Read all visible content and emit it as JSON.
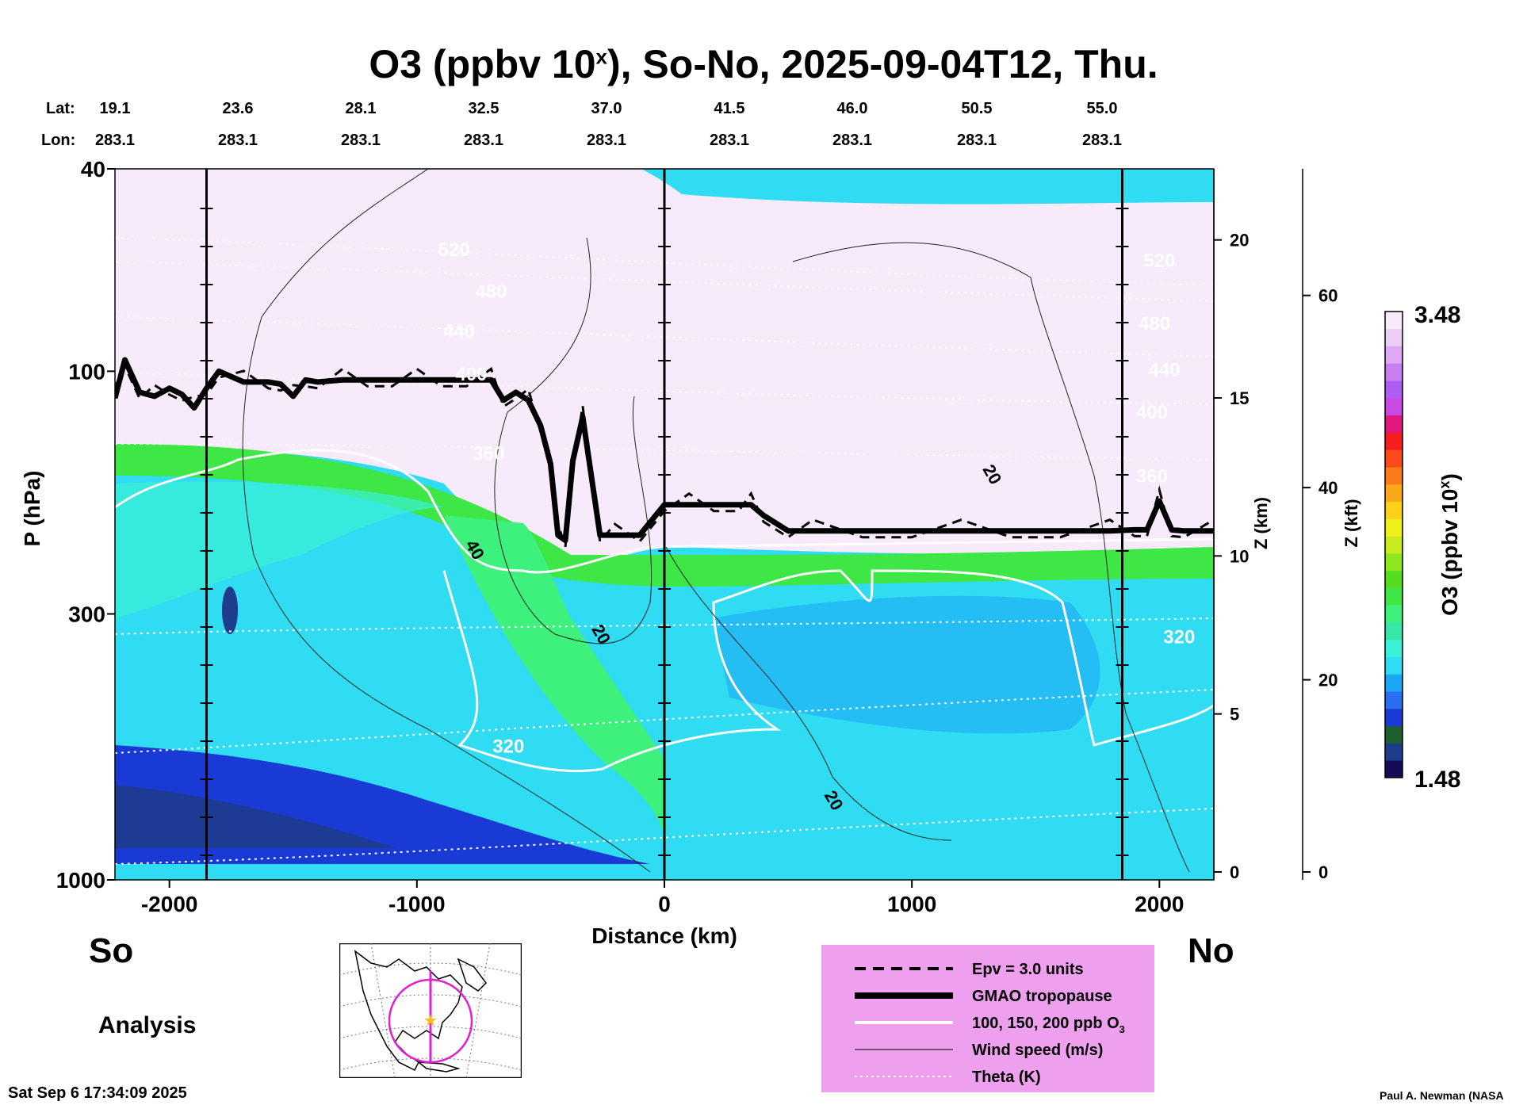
{
  "chart_data": {
    "type": "heatmap",
    "title_main": "O3 (ppbv 10",
    "title_sup": "x",
    "title_rest": "), So-No, 2025-09-04T12, Thu.",
    "header": {
      "lat_label": "Lat:",
      "lon_label": "Lon:",
      "lat_values": [
        "19.1",
        "23.6",
        "28.1",
        "32.5",
        "37.0",
        "41.5",
        "46.0",
        "50.5",
        "55.0"
      ],
      "lon_values": [
        "283.1",
        "283.1",
        "283.1",
        "283.1",
        "283.1",
        "283.1",
        "283.1",
        "283.1",
        "283.1"
      ]
    },
    "xlabel": "Distance (km)",
    "ylabel": "P (hPa)",
    "xlim": [
      -2220,
      2220
    ],
    "ylim": [
      1000,
      40
    ],
    "yscale": "log",
    "x_ticks": [
      {
        "value": -2000,
        "label": "-2000"
      },
      {
        "value": -1000,
        "label": "-1000"
      },
      {
        "value": 0,
        "label": "0"
      },
      {
        "value": 1000,
        "label": "1000"
      },
      {
        "value": 2000,
        "label": "2000"
      }
    ],
    "y_ticks": [
      {
        "value": 40,
        "label": "40"
      },
      {
        "value": 100,
        "label": "100"
      },
      {
        "value": 300,
        "label": "300"
      },
      {
        "value": 1000,
        "label": "1000"
      }
    ],
    "z_km_axis": {
      "label": "Z (km)",
      "ticks": [
        {
          "value": 0,
          "label": "0"
        },
        {
          "value": 5,
          "label": "5"
        },
        {
          "value": 10,
          "label": "10"
        },
        {
          "value": 15,
          "label": "15"
        },
        {
          "value": 20,
          "label": "20"
        }
      ]
    },
    "z_kft_axis": {
      "label": "Z (kft)",
      "ticks": [
        {
          "value": 0,
          "label": "0"
        },
        {
          "value": 20,
          "label": "20"
        },
        {
          "value": 40,
          "label": "40"
        },
        {
          "value": 60,
          "label": "60"
        }
      ]
    },
    "vertical_lines_x": [
      -1850,
      0,
      1850
    ],
    "tropopause": {
      "x": [
        -2220,
        -2180,
        -2120,
        -2060,
        -2000,
        -1950,
        -1900,
        -1850,
        -1800,
        -1700,
        -1600,
        -1550,
        -1500,
        -1450,
        -1400,
        -1300,
        -1200,
        -1100,
        -1000,
        -900,
        -800,
        -700,
        -650,
        -600,
        -550,
        -500,
        -460,
        -430,
        -400,
        -370,
        -330,
        -300,
        -260,
        -200,
        -100,
        0,
        100,
        200,
        300,
        350,
        400,
        500,
        600,
        800,
        1000,
        1200,
        1400,
        1600,
        1800,
        1900,
        1950,
        2000,
        2050,
        2100,
        2220
      ],
      "p": [
        113,
        95,
        110,
        112,
        108,
        111,
        118,
        108,
        100,
        105,
        105,
        106,
        112,
        104,
        105,
        104,
        104,
        104,
        104,
        104,
        104,
        104,
        114,
        110,
        114,
        128,
        152,
        210,
        215,
        150,
        123,
        155,
        210,
        210,
        210,
        183,
        183,
        183,
        183,
        183,
        192,
        206,
        206,
        206,
        206,
        206,
        206,
        206,
        206,
        205,
        205,
        180,
        205,
        206,
        206
      ]
    },
    "contour_labels_theta": [
      {
        "x": -850,
        "p": 58,
        "label": "520"
      },
      {
        "x": -700,
        "p": 70,
        "label": "480"
      },
      {
        "x": -830,
        "p": 84,
        "label": "440"
      },
      {
        "x": -780,
        "p": 102,
        "label": "400"
      },
      {
        "x": -710,
        "p": 146,
        "label": "360"
      },
      {
        "x": -630,
        "p": 550,
        "label": "320"
      },
      {
        "x": 2000,
        "p": 61,
        "label": "520"
      },
      {
        "x": 1980,
        "p": 81,
        "label": "480"
      },
      {
        "x": 2020,
        "p": 100,
        "label": "440"
      },
      {
        "x": 1970,
        "p": 121,
        "label": "400"
      },
      {
        "x": 1970,
        "p": 162,
        "label": "360"
      },
      {
        "x": 2080,
        "p": 335,
        "label": "320"
      }
    ],
    "contour_labels_wind": [
      {
        "x": -770,
        "p": 225,
        "label": "40"
      },
      {
        "x": -260,
        "p": 330,
        "label": "20"
      },
      {
        "x": 1320,
        "p": 160,
        "label": "20"
      },
      {
        "x": 680,
        "p": 700,
        "label": "20"
      }
    ],
    "colorbar": {
      "label": "O3 (ppbv 10",
      "label_sup": "x",
      "label_end": ")",
      "min_label": "1.48",
      "max_label": "3.48",
      "min": 1.48,
      "max": 3.48,
      "colors": [
        "#140a55",
        "#1e3c8c",
        "#1f5f30",
        "#1a3ad6",
        "#2a6ef2",
        "#1ba6f6",
        "#2fdcf2",
        "#3af0d6",
        "#38e6a8",
        "#3ef07c",
        "#3ee646",
        "#55dc20",
        "#8ee61e",
        "#c8ec1e",
        "#f2f01a",
        "#fcd11a",
        "#fca81a",
        "#fc7b1a",
        "#fc4a1a",
        "#f41e1e",
        "#e01880",
        "#c84ae2",
        "#ae5cf2",
        "#c67ef0",
        "#dea8f2",
        "#eccdf5",
        "#f7eafa"
      ]
    },
    "legend": [
      {
        "label": "Epv = 3.0 units",
        "style": "dashed"
      },
      {
        "label": "GMAO tropopause",
        "style": "thick"
      },
      {
        "label": "100, 150, 200 ppb O",
        "label_sub": "3",
        "style": "white"
      },
      {
        "label": "Wind speed (m/s)",
        "style": "thin"
      },
      {
        "label": "Theta (K)",
        "style": "dotted"
      }
    ],
    "legend_position": "bottom-right",
    "color_legend_bg": "#eea0ee"
  },
  "labels": {
    "south": "So",
    "north": "No",
    "analysis": "Analysis",
    "timestamp": "Sat Sep  6 17:34:09 2025",
    "credit": "Paul A. Newman (NASA"
  }
}
